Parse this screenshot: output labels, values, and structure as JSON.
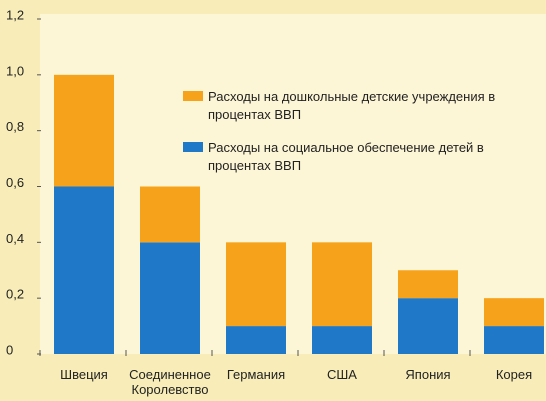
{
  "chart_data": {
    "type": "stacked_bar",
    "categories": [
      "Швеция",
      "Соединенное Королевство",
      "Германия",
      "США",
      "Япония",
      "Корея"
    ],
    "series": [
      {
        "name": "Расходы на социальное обеспечение детей в процентах ВВП",
        "color": "#1f78c8",
        "values": [
          0.6,
          0.4,
          0.1,
          0.1,
          0.2,
          0.1
        ]
      },
      {
        "name": "Расходы на дошкольные детские учреждения в процентах ВВП",
        "color": "#f7a21b",
        "values": [
          0.4,
          0.2,
          0.3,
          0.3,
          0.1,
          0.1
        ]
      }
    ],
    "ylim": [
      0,
      1.2
    ],
    "yticks": [
      0,
      {
        "value": 0.2,
        "label": "0,2"
      },
      {
        "value": 0.4,
        "label": "0,4"
      },
      {
        "value": 0.6,
        "label": "0,6"
      },
      {
        "value": 0.8,
        "label": "0,8"
      },
      {
        "value": 1.0,
        "label": "1,0"
      },
      {
        "value": 1.2,
        "label": "1,2"
      }
    ]
  }
}
